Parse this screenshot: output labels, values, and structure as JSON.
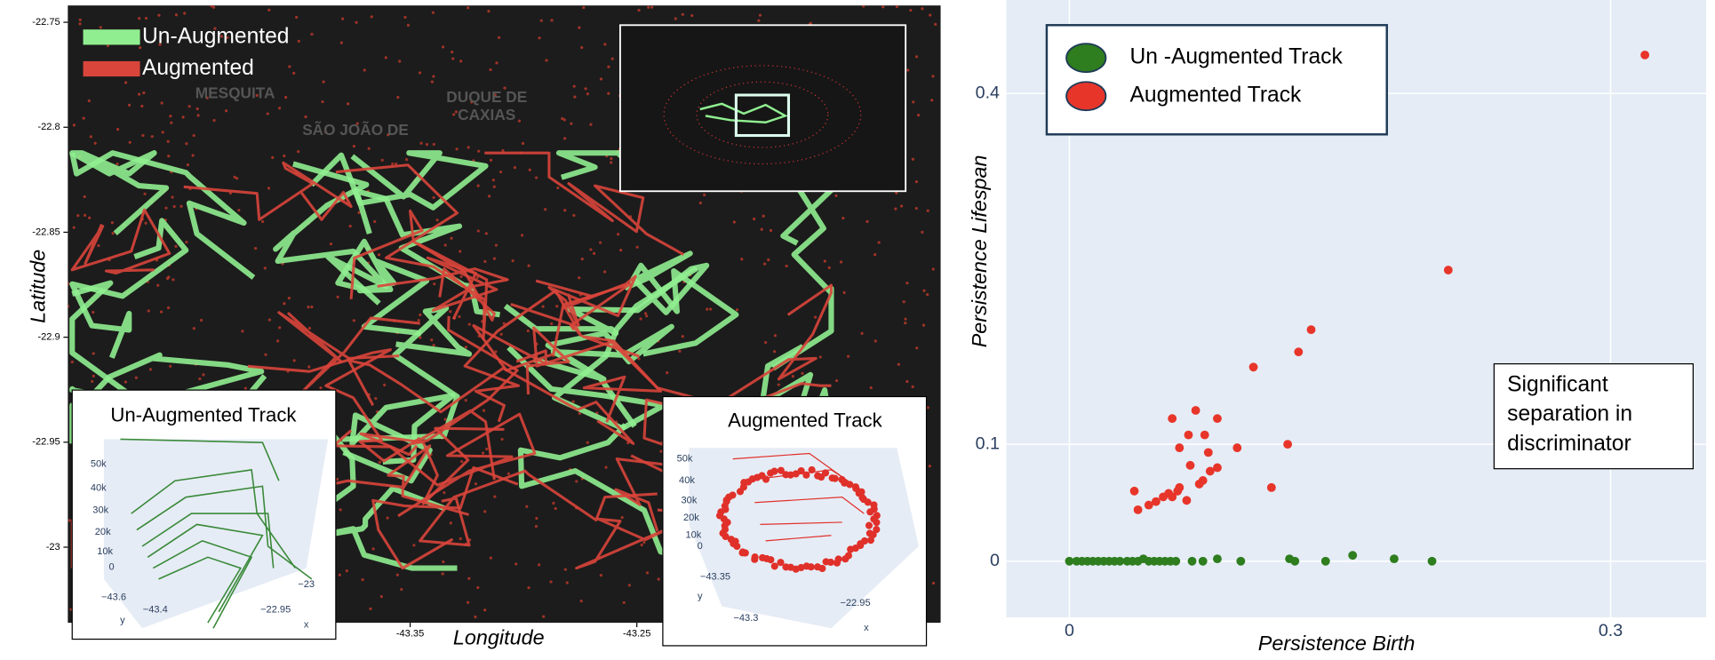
{
  "chart_data": [
    {
      "type": "map",
      "xlabel": "Longitude",
      "ylabel": "Latitude",
      "xlim": [
        -43.501,
        -43.116
      ],
      "ylim": [
        -23.036,
        -22.742
      ],
      "xticks": [
        -43.35,
        -43.25
      ],
      "yticks": [
        -22.75,
        -22.8,
        -22.85,
        -22.9,
        -22.95,
        -23
      ],
      "series": [
        {
          "name": "Un-Augmented",
          "color": "#90ee90"
        },
        {
          "name": "Augmented",
          "color": "#d9453b"
        }
      ],
      "place_labels": [
        "MESQUITA",
        "DUQUE DE",
        "CAXIAS",
        "SÃO JOÃO DE"
      ],
      "insets": [
        {
          "title": "Un-Augmented Track",
          "color": "#3a8a3a",
          "tick_labels": [
            "50k",
            "40k",
            "30k",
            "20k",
            "10k",
            "0",
            "−43.6",
            "−43.4",
            "y",
            "−22.95",
            "−23",
            "x"
          ]
        },
        {
          "title": "Augmented Track",
          "color": "#e0302a",
          "tick_labels": [
            "50k",
            "40k",
            "30k",
            "20k",
            "10k",
            "0",
            "−43.35",
            "−43.3",
            "y",
            "−22.95",
            "x"
          ]
        }
      ]
    },
    {
      "type": "scatter",
      "xlabel": "Persistence Birth",
      "ylabel": "Persistence Lifespan",
      "xlim": [
        -0.035,
        0.353
      ],
      "ylim": [
        -0.048,
        0.48
      ],
      "xticks": [
        0,
        0.3
      ],
      "yticks": [
        0,
        0.1,
        0.4
      ],
      "grid": true,
      "legend": "top-left",
      "annotation": "Significant separation in discriminator",
      "series": [
        {
          "name": "Un -Augmented Track",
          "color": "#2e7d1e",
          "x": [
            0,
            0.004,
            0.007,
            0.01,
            0.013,
            0.016,
            0.019,
            0.022,
            0.025,
            0.028,
            0.032,
            0.035,
            0.038,
            0.041,
            0.044,
            0.047,
            0.05,
            0.053,
            0.056,
            0.059,
            0.068,
            0.074,
            0.082,
            0.095,
            0.122,
            0.125,
            0.142,
            0.157,
            0.18,
            0.201
          ],
          "values": [
            0,
            0,
            0,
            0,
            0,
            0,
            0,
            0,
            0,
            0,
            0,
            0,
            0,
            0.002,
            0,
            0,
            0,
            0,
            0,
            0,
            0,
            0,
            0.002,
            0,
            0.002,
            0,
            0,
            0.005,
            0.002,
            0
          ]
        },
        {
          "name": "Augmented Track",
          "color": "#e8352a",
          "x": [
            0.319,
            0.21,
            0.134,
            0.127,
            0.102,
            0.07,
            0.082,
            0.057,
            0.066,
            0.075,
            0.061,
            0.077,
            0.093,
            0.121,
            0.067,
            0.082,
            0.078,
            0.074,
            0.072,
            0.061,
            0.06,
            0.055,
            0.052,
            0.048,
            0.044,
            0.038,
            0.036,
            0.065,
            0.057,
            0.112
          ],
          "values": [
            0.433,
            0.249,
            0.198,
            0.179,
            0.166,
            0.129,
            0.122,
            0.122,
            0.108,
            0.108,
            0.097,
            0.093,
            0.097,
            0.1,
            0.082,
            0.08,
            0.077,
            0.069,
            0.066,
            0.063,
            0.06,
            0.058,
            0.055,
            0.051,
            0.048,
            0.044,
            0.06,
            0.052,
            0.055,
            0.063
          ]
        }
      ]
    }
  ]
}
